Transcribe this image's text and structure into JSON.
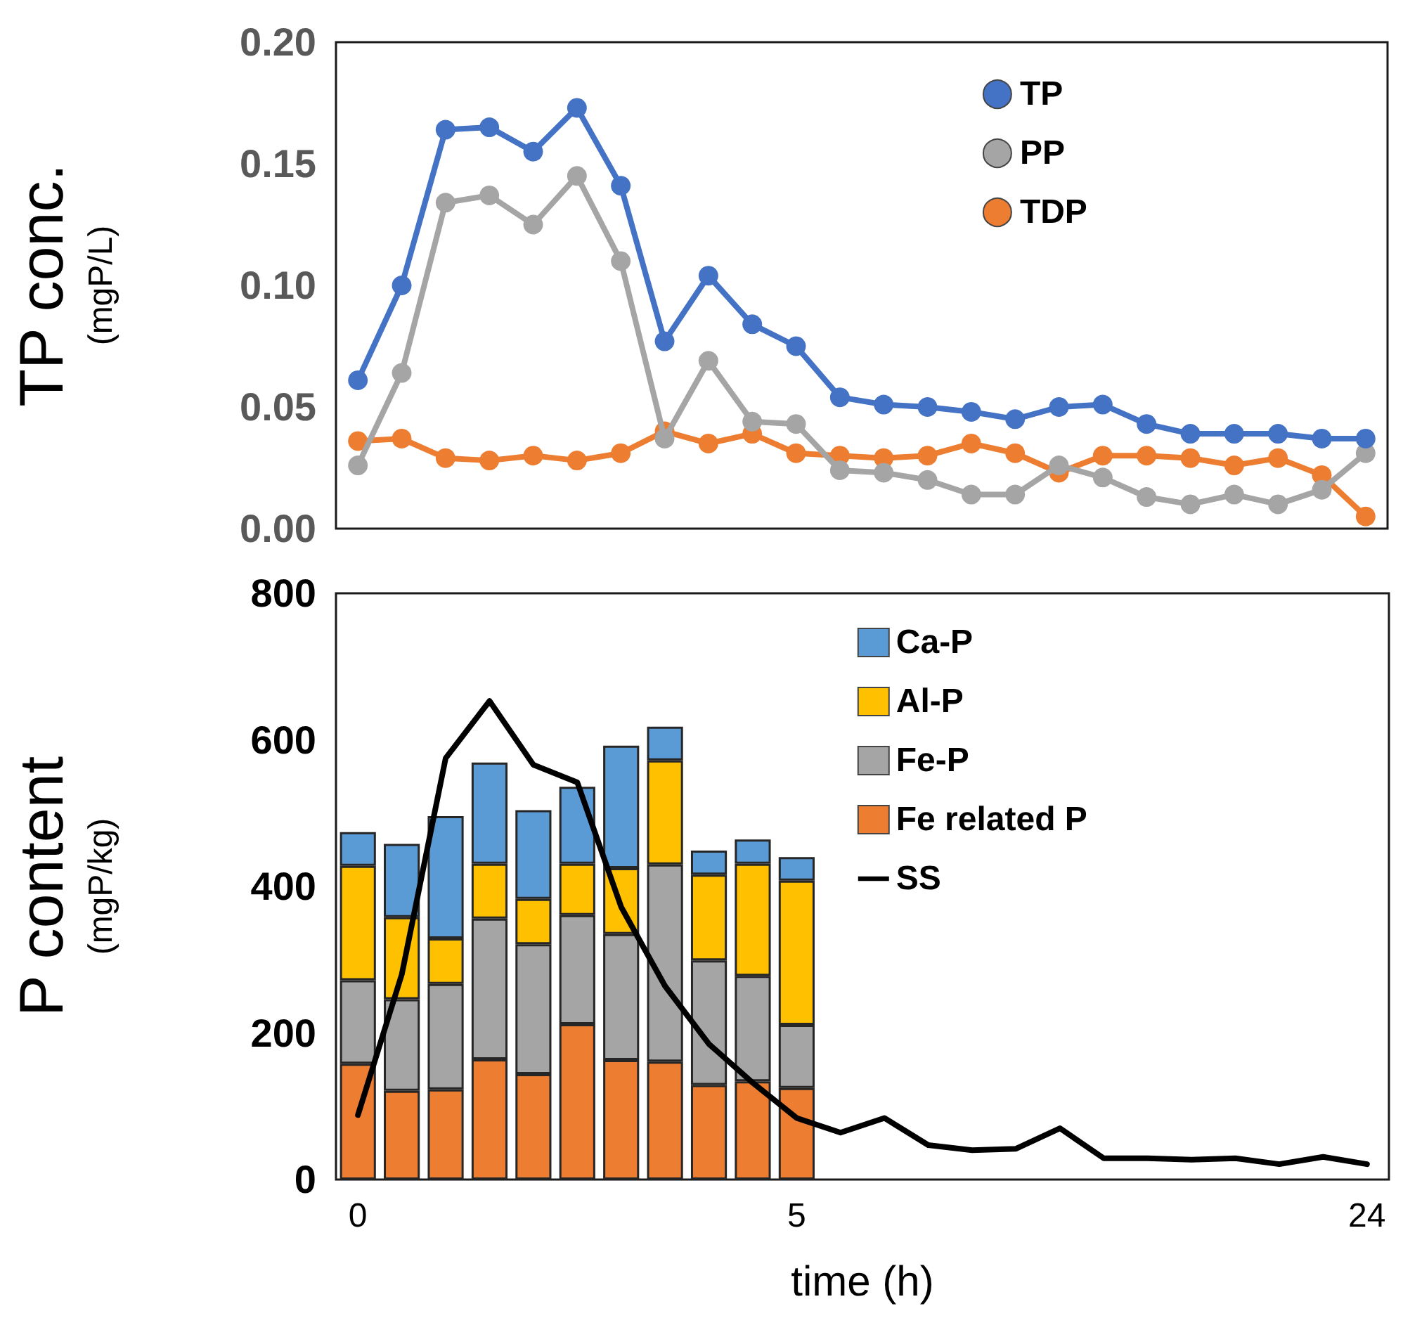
{
  "chart_data": [
    {
      "type": "line",
      "ylabel": "TP conc.\n(mgP/L)",
      "categories": [
        null,
        null,
        null,
        null,
        null,
        null,
        null,
        null,
        null,
        null,
        null,
        null,
        null,
        null,
        null,
        null,
        null,
        null,
        null,
        null,
        null,
        null,
        null,
        null
      ],
      "ylim": [
        0,
        0.2
      ],
      "yticks": [
        {
          "value": 0,
          "label": "0.00"
        },
        {
          "value": 0.05,
          "label": "0.05"
        },
        {
          "value": 0.1,
          "label": "0.10"
        },
        {
          "value": 0.15,
          "label": "0.15"
        },
        {
          "value": 0.2,
          "label": "0.20"
        }
      ],
      "tick_labels": "y",
      "grid": false,
      "legend": "top right",
      "marker": "circle",
      "series": [
        {
          "name": "TP",
          "color": "#4472c4",
          "values": [
            0.061,
            0.1,
            0.164,
            0.165,
            0.155,
            0.173,
            0.141,
            0.077,
            0.104,
            0.084,
            0.075,
            0.054,
            0.051,
            0.05,
            0.048,
            0.045,
            0.05,
            0.051,
            0.043,
            0.039,
            0.039,
            0.039,
            0.037,
            0.037
          ]
        },
        {
          "name": "PP",
          "color": "#a5a5a5",
          "values": [
            0.026,
            0.064,
            0.134,
            0.137,
            0.125,
            0.145,
            0.11,
            0.037,
            0.069,
            0.044,
            0.043,
            0.024,
            0.023,
            0.02,
            0.014,
            0.014,
            0.026,
            0.021,
            0.013,
            0.01,
            0.014,
            0.01,
            0.016,
            0.031
          ]
        },
        {
          "name": "TDP",
          "color": "#ed7d31",
          "values": [
            0.036,
            0.037,
            0.029,
            0.028,
            0.03,
            0.028,
            0.031,
            0.04,
            0.035,
            0.039,
            0.031,
            0.03,
            0.029,
            0.03,
            0.035,
            0.031,
            0.023,
            0.03,
            0.03,
            0.029,
            0.026,
            0.029,
            0.022,
            0.005
          ]
        }
      ]
    },
    {
      "type": "bar",
      "stacked": true,
      "ylabel": "P content\n(mgP/kg)",
      "xlabel": "time (h)",
      "categories": [
        "0",
        null,
        null,
        null,
        null,
        null,
        null,
        null,
        null,
        null,
        "5",
        null,
        null,
        null,
        null,
        null,
        null,
        null,
        null,
        null,
        null,
        null,
        null,
        "24"
      ],
      "ylim": [
        0,
        800
      ],
      "yticks": [
        0,
        200,
        400,
        600,
        800
      ],
      "grid": false,
      "legend": "top right",
      "series": [
        {
          "name": "Fe related P",
          "color": "#ed7d31",
          "values": [
            158,
            121,
            123,
            164,
            144,
            212,
            163,
            161,
            129,
            134,
            125,
            null,
            null,
            null,
            null,
            null,
            null,
            null,
            null,
            null,
            null,
            null,
            null,
            null
          ]
        },
        {
          "name": "Fe-P",
          "color": "#a5a5a5",
          "values": [
            114,
            125,
            144,
            192,
            177,
            149,
            172,
            269,
            170,
            144,
            86,
            null,
            null,
            null,
            null,
            null,
            null,
            null,
            null,
            null,
            null,
            null,
            null,
            null
          ]
        },
        {
          "name": "Al-P",
          "color": "#ffc000",
          "values": [
            156,
            112,
            62,
            75,
            62,
            70,
            90,
            142,
            117,
            153,
            197,
            null,
            null,
            null,
            null,
            null,
            null,
            null,
            null,
            null,
            null,
            null,
            null,
            null
          ]
        },
        {
          "name": "Ca-P",
          "color": "#5b9bd5",
          "values": [
            46,
            100,
            167,
            138,
            121,
            105,
            167,
            46,
            33,
            33,
            32,
            null,
            null,
            null,
            null,
            null,
            null,
            null,
            null,
            null,
            null,
            null,
            null,
            null
          ]
        },
        {
          "name": "SS",
          "type": "line",
          "marker": "none",
          "color": "#000000",
          "values": [
            88,
            280,
            575,
            653,
            566,
            542,
            372,
            264,
            185,
            132,
            84,
            64,
            84,
            47,
            40,
            42,
            70,
            29,
            29,
            27,
            29,
            21,
            31,
            21
          ]
        }
      ]
    }
  ]
}
